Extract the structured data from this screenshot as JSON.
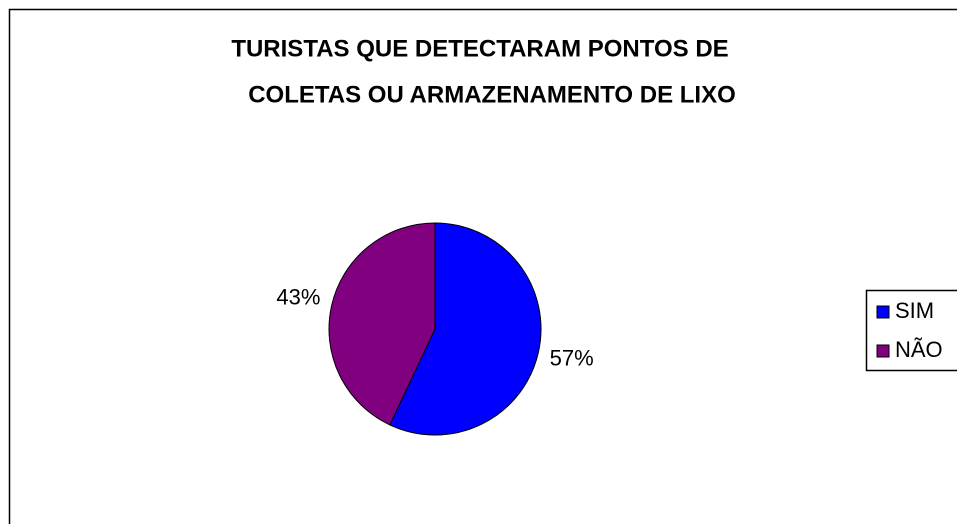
{
  "chart_data": {
    "type": "pie",
    "title": [
      "TURISTAS QUE DETECTARAM PONTOS DE",
      "COLETAS OU ARMAZENAMENTO DE LIXO"
    ],
    "categories": [
      "SIM",
      "NÃO"
    ],
    "values": [
      57,
      43
    ],
    "value_labels": [
      "57%",
      "43%"
    ],
    "colors": [
      "#0000ff",
      "#800080"
    ],
    "legend": "right"
  }
}
